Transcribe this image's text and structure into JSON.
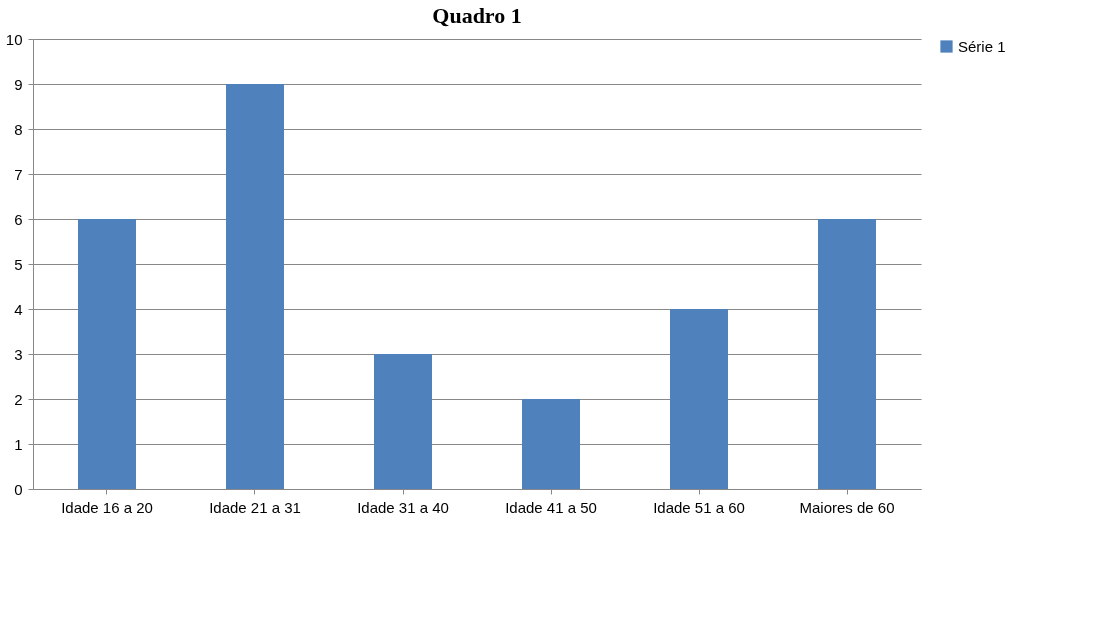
{
  "chart_data": {
    "type": "bar",
    "title": "Quadro  1",
    "categories": [
      "Idade 16 a 20",
      "Idade 21 a 31",
      "Idade 31 a 40",
      "Idade 41 a 50",
      "Idade 51 a 60",
      "Maiores de 60"
    ],
    "series": [
      {
        "name": "Série 1",
        "color": "#4f81bd",
        "values": [
          6,
          9,
          3,
          2,
          4,
          6
        ]
      }
    ],
    "ylim": [
      0,
      10
    ],
    "yticks": [
      0,
      1,
      2,
      3,
      4,
      5,
      6,
      7,
      8,
      9,
      10
    ],
    "grid": "y",
    "legend": "right"
  }
}
